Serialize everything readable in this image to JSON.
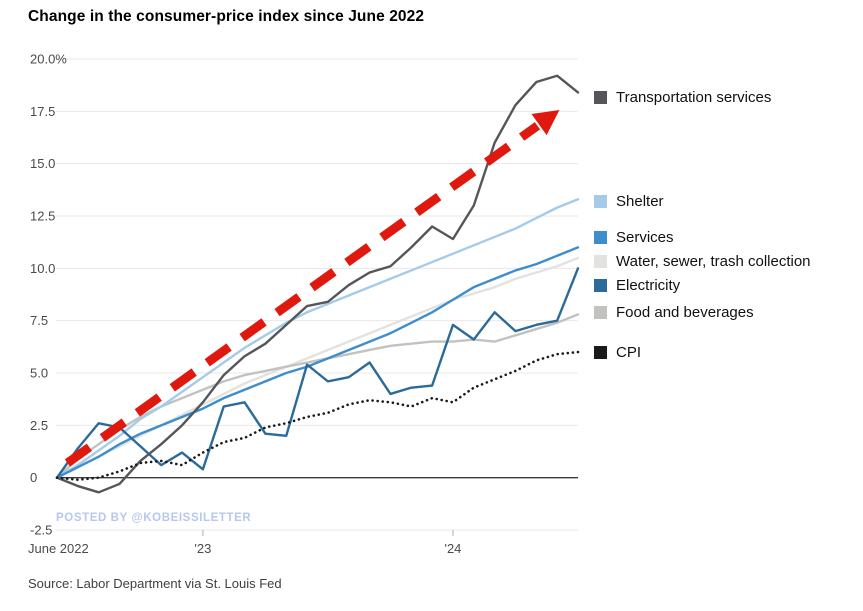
{
  "page": {
    "title": "Change in the consumer-price index since June 2022",
    "watermark": "POSTED BY @KOBEISSILETTER",
    "source": "Source: Labor Department via St. Louis Fed"
  },
  "chart_data": {
    "type": "line",
    "title": "Change in the consumer-price index since June 2022",
    "x_unit": "month",
    "x_start_label": "June 2022",
    "x_tick_labels": [
      "June 2022",
      "'23",
      "'24"
    ],
    "x_tick_positions": [
      0,
      7,
      19
    ],
    "ylim": [
      -2.5,
      20.0
    ],
    "y_ticks": [
      -2.5,
      0,
      2.5,
      5.0,
      7.5,
      10.0,
      12.5,
      15.0,
      17.5,
      20.0
    ],
    "y_tick_labels": [
      "-2.5",
      "0",
      "2.5",
      "5.0",
      "7.5",
      "10.0",
      "12.5",
      "15.0",
      "17.5",
      "20.0%"
    ],
    "grid": "horizontal",
    "legend_position": "right",
    "series": [
      {
        "name": "Transportation services",
        "color": "#55565a",
        "style": "solid",
        "values": [
          0,
          -0.4,
          -0.7,
          -0.3,
          0.8,
          1.6,
          2.5,
          3.6,
          4.9,
          5.8,
          6.4,
          7.3,
          8.2,
          8.4,
          9.2,
          9.8,
          10.1,
          11.0,
          12.0,
          11.4,
          13.0,
          16.0,
          17.8,
          18.9,
          19.2,
          18.4
        ]
      },
      {
        "name": "Shelter",
        "color": "#a5cbe9",
        "style": "solid",
        "values": [
          0,
          0.6,
          1.3,
          2.0,
          2.8,
          3.4,
          4.1,
          4.8,
          5.5,
          6.2,
          6.8,
          7.4,
          7.9,
          8.3,
          8.7,
          9.1,
          9.5,
          9.9,
          10.3,
          10.7,
          11.1,
          11.5,
          11.9,
          12.4,
          12.9,
          13.3
        ]
      },
      {
        "name": "Services",
        "color": "#3e8ece",
        "style": "solid",
        "values": [
          0,
          0.5,
          1.0,
          1.6,
          2.1,
          2.5,
          2.9,
          3.3,
          3.8,
          4.2,
          4.6,
          5.0,
          5.3,
          5.7,
          6.1,
          6.5,
          6.9,
          7.4,
          7.9,
          8.5,
          9.1,
          9.5,
          9.9,
          10.2,
          10.6,
          11.0
        ]
      },
      {
        "name": "Water, sewer, trash collection",
        "color": "#e2e2e0",
        "style": "solid",
        "values": [
          0,
          0.5,
          1.0,
          1.5,
          2.0,
          2.5,
          3.0,
          3.5,
          4.0,
          4.5,
          4.9,
          5.3,
          5.7,
          6.1,
          6.5,
          6.9,
          7.3,
          7.7,
          8.1,
          8.5,
          8.8,
          9.1,
          9.5,
          9.8,
          10.1,
          10.5
        ]
      },
      {
        "name": "Electricity",
        "color": "#2b6a99",
        "style": "solid",
        "values": [
          0,
          1.4,
          2.6,
          2.4,
          1.5,
          0.6,
          1.2,
          0.4,
          3.4,
          3.6,
          2.1,
          2.0,
          5.4,
          4.6,
          4.8,
          5.5,
          4.0,
          4.3,
          4.4,
          7.3,
          6.6,
          7.9,
          7.0,
          7.3,
          7.5,
          10.0
        ]
      },
      {
        "name": "Food and beverages",
        "color": "#c2c2c0",
        "style": "solid",
        "values": [
          0,
          0.9,
          1.6,
          2.3,
          2.9,
          3.4,
          3.8,
          4.2,
          4.6,
          4.9,
          5.1,
          5.3,
          5.5,
          5.7,
          5.9,
          6.1,
          6.3,
          6.4,
          6.5,
          6.5,
          6.6,
          6.5,
          6.8,
          7.1,
          7.4,
          7.8
        ]
      },
      {
        "name": "CPI",
        "color": "#1a1a1a",
        "style": "dotted",
        "values": [
          0,
          -0.1,
          0.0,
          0.3,
          0.7,
          0.8,
          0.6,
          1.2,
          1.7,
          1.9,
          2.4,
          2.6,
          2.9,
          3.1,
          3.5,
          3.7,
          3.6,
          3.4,
          3.8,
          3.6,
          4.3,
          4.7,
          5.1,
          5.6,
          5.9,
          6.0
        ]
      }
    ],
    "annotation_arrow": {
      "description": "red dashed trend arrow",
      "color": "#e0190f",
      "from": {
        "month": 0.5,
        "value": 0.7
      },
      "to": {
        "month": 23.6,
        "value": 17.2
      }
    }
  }
}
